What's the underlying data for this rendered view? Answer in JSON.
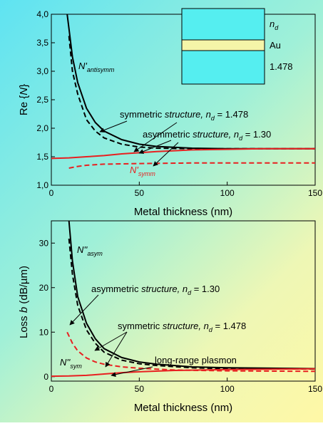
{
  "chart_data": [
    {
      "type": "line",
      "ylabel_prefix": "Re {",
      "ylabel_var": "N",
      "ylabel_suffix": "}",
      "xlabel": "Metal thickness (nm)",
      "xlim": [
        0,
        150
      ],
      "ylim": [
        1.0,
        4.0
      ],
      "x_ticks": [
        "0",
        "50",
        "100",
        "150"
      ],
      "y_ticks": [
        "1,0",
        "1,5",
        "2,0",
        "2,5",
        "3,0",
        "3,5",
        "4,0"
      ],
      "series": [
        {
          "color": "#000000",
          "dash": false,
          "x": [
            9,
            10,
            12,
            15,
            20,
            25,
            30,
            40,
            50,
            60,
            80,
            100,
            120,
            150
          ],
          "y": [
            4.0,
            3.75,
            3.25,
            2.8,
            2.35,
            2.1,
            1.95,
            1.8,
            1.72,
            1.68,
            1.65,
            1.64,
            1.64,
            1.64
          ]
        },
        {
          "color": "#000000",
          "dash": true,
          "x": [
            10,
            12,
            15,
            20,
            25,
            30,
            40,
            50,
            60,
            80,
            100,
            120,
            150
          ],
          "y": [
            3.62,
            3.0,
            2.6,
            2.15,
            1.95,
            1.83,
            1.72,
            1.67,
            1.65,
            1.64,
            1.64,
            1.64,
            1.64
          ]
        },
        {
          "color": "#e82020",
          "dash": false,
          "x": [
            0,
            10,
            20,
            30,
            40,
            50,
            60,
            80,
            100,
            120,
            150
          ],
          "y": [
            1.47,
            1.48,
            1.5,
            1.52,
            1.55,
            1.57,
            1.59,
            1.62,
            1.63,
            1.64,
            1.64
          ]
        },
        {
          "color": "#e82020",
          "dash": true,
          "x": [
            10,
            15,
            20,
            30,
            50,
            80,
            120,
            150
          ],
          "y": [
            1.3,
            1.33,
            1.35,
            1.37,
            1.38,
            1.39,
            1.39,
            1.39
          ]
        }
      ],
      "annotations": {
        "antisymm_base": "N'",
        "antisymm_sub": "antisymm",
        "symm_base": "N'",
        "symm_sub": "symm",
        "symmetric_pre": "symmetric ",
        "symmetric_em": "structure,",
        "symmetric_n": " n",
        "symmetric_d": "d",
        "symmetric_val": " = 1.478",
        "asymmetric_pre": "asymmetric ",
        "asymmetric_em": "structure,",
        "asymmetric_n": " n",
        "asymmetric_d": "d",
        "asymmetric_val": " = 1.30"
      },
      "inset": {
        "top_n": "n",
        "top_d": "d",
        "middle": "Au",
        "bottom": "1.478",
        "colors": {
          "cladding": "#55eef0",
          "metal": "#f5f5a8"
        }
      }
    },
    {
      "type": "line",
      "ylabel_prefix": "Loss ",
      "ylabel_var": "b",
      "ylabel_suffix": " (dB/µm)",
      "xlabel": "Metal thickness (nm)",
      "xlim": [
        0,
        150
      ],
      "ylim": [
        -1,
        35
      ],
      "x_ticks": [
        "0",
        "50",
        "100",
        "150"
      ],
      "y_ticks": [
        "0",
        "10",
        "20",
        "30"
      ],
      "series": [
        {
          "color": "#000000",
          "dash": false,
          "x": [
            10,
            12,
            15,
            20,
            25,
            30,
            40,
            50,
            60,
            80,
            100,
            150
          ],
          "y": [
            35,
            26,
            18,
            12,
            8.5,
            6.3,
            4.3,
            3.3,
            2.8,
            2.2,
            2.0,
            1.8
          ]
        },
        {
          "color": "#000000",
          "dash": true,
          "x": [
            10,
            12,
            15,
            20,
            25,
            30,
            40,
            50,
            60,
            80,
            100,
            150
          ],
          "y": [
            31,
            23,
            16,
            10.5,
            7.5,
            5.5,
            3.7,
            2.9,
            2.5,
            2.0,
            1.8,
            1.7
          ]
        },
        {
          "color": "#e82020",
          "dash": true,
          "x": [
            9,
            12,
            15,
            20,
            25,
            30,
            40,
            50,
            70,
            100,
            150
          ],
          "y": [
            10,
            7.5,
            5.8,
            4.2,
            3.3,
            2.8,
            2.2,
            1.9,
            1.5,
            1.3,
            1.2
          ]
        },
        {
          "color": "#e82020",
          "dash": false,
          "x": [
            0,
            10,
            20,
            30,
            40,
            50,
            70,
            100,
            130,
            150
          ],
          "y": [
            0.1,
            0.15,
            0.3,
            0.6,
            0.9,
            1.1,
            1.4,
            1.6,
            1.7,
            1.75
          ]
        }
      ],
      "annotations": {
        "asym_base": "N''",
        "asym_sub": "asym",
        "sym_base": "N''",
        "sym_sub": "sym",
        "asymmetric_pre": "asymmetric ",
        "asymmetric_em": "structure,",
        "asymmetric_n": " n",
        "asymmetric_d": "d",
        "asymmetric_val": " = 1.30",
        "symmetric_pre": "symmetric ",
        "symmetric_em": "structure,",
        "symmetric_n": " n",
        "symmetric_d": "d",
        "symmetric_val": " = 1.478",
        "long_range": "long-range plasmon"
      }
    }
  ]
}
